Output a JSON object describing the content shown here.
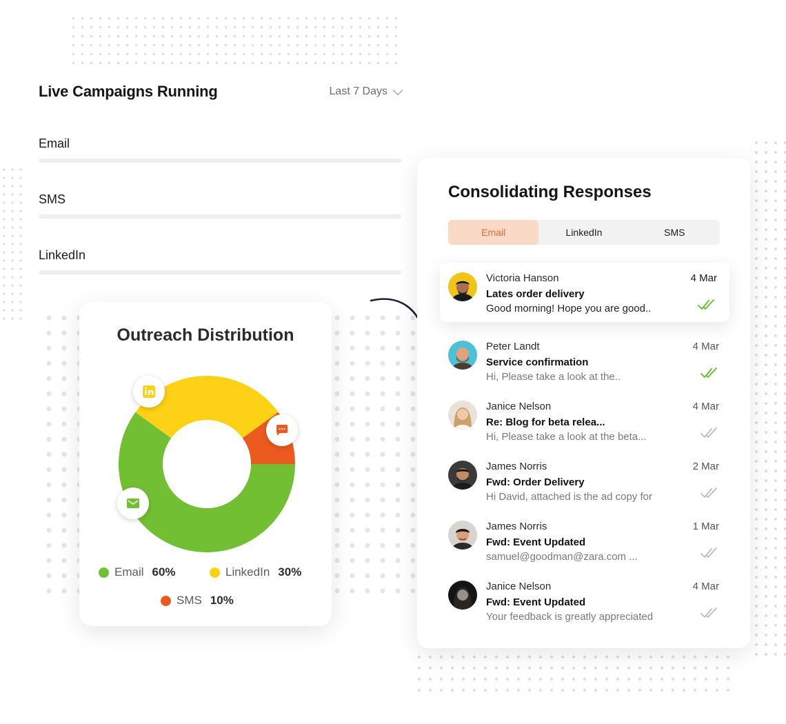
{
  "live_campaigns": {
    "title": "Live Campaigns Running",
    "range_label": "Last 7 Days",
    "channels": [
      {
        "label": "Email"
      },
      {
        "label": "SMS"
      },
      {
        "label": "LinkedIn"
      }
    ]
  },
  "outreach": {
    "title": "Outreach Distribution",
    "legend": [
      {
        "label": "Email",
        "pct": "60%",
        "color": "#73bf33"
      },
      {
        "label": "LinkedIn",
        "pct": "30%",
        "color": "#fcd116"
      },
      {
        "label": "SMS",
        "pct": "10%",
        "color": "#ec5a20"
      }
    ]
  },
  "responses": {
    "title": "Consolidating Responses",
    "tabs": [
      {
        "label": "Email",
        "active": true
      },
      {
        "label": "LinkedIn",
        "active": false
      },
      {
        "label": "SMS",
        "active": false
      }
    ],
    "messages": [
      {
        "name": "Victoria Hanson",
        "date": "4 Mar",
        "subject": "Lates order delivery",
        "preview": "Good morning! Hope you are good..",
        "read": true
      },
      {
        "name": "Peter Landt",
        "date": "4 Mar",
        "subject": "Service confirmation",
        "preview": "Hi, Please take a look at the..",
        "read": true
      },
      {
        "name": "Janice Nelson",
        "date": "4 Mar",
        "subject": "Re: Blog for beta relea...",
        "preview": "Hi, Please take a look at the beta...",
        "read": false
      },
      {
        "name": "James Norris",
        "date": "2 Mar",
        "subject": "Fwd: Order Delivery",
        "preview": "Hi David, attached is the ad copy for",
        "read": false
      },
      {
        "name": "James Norris",
        "date": "1 Mar",
        "subject": "Fwd: Event Updated",
        "preview": "samuel@goodman@zara.com ...",
        "read": false
      },
      {
        "name": "Janice Nelson",
        "date": "4 Mar",
        "subject": "Fwd: Event Updated",
        "preview": "Your feedback is greatly appreciated",
        "read": false
      }
    ]
  },
  "colors": {
    "accent": "#e8692d",
    "read_tick": "#5cbf2a",
    "unread_tick": "#bdbdbd"
  }
}
